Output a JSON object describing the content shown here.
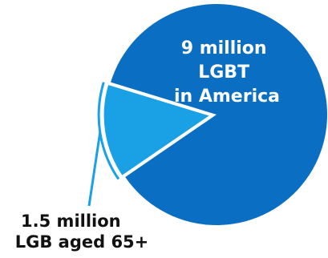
{
  "chart_data": {
    "type": "pie",
    "slices": [
      {
        "label_lines": [
          "9 million",
          "LGBT",
          "in America"
        ],
        "value": 9,
        "unit": "million",
        "color": "#0a6fc2"
      },
      {
        "label_lines": [
          "1.5 million",
          "LGB aged 65+"
        ],
        "value": 1.5,
        "unit": "million",
        "color": "#1aa0e4",
        "exploded": true
      }
    ],
    "legend": "none",
    "grid": false
  }
}
